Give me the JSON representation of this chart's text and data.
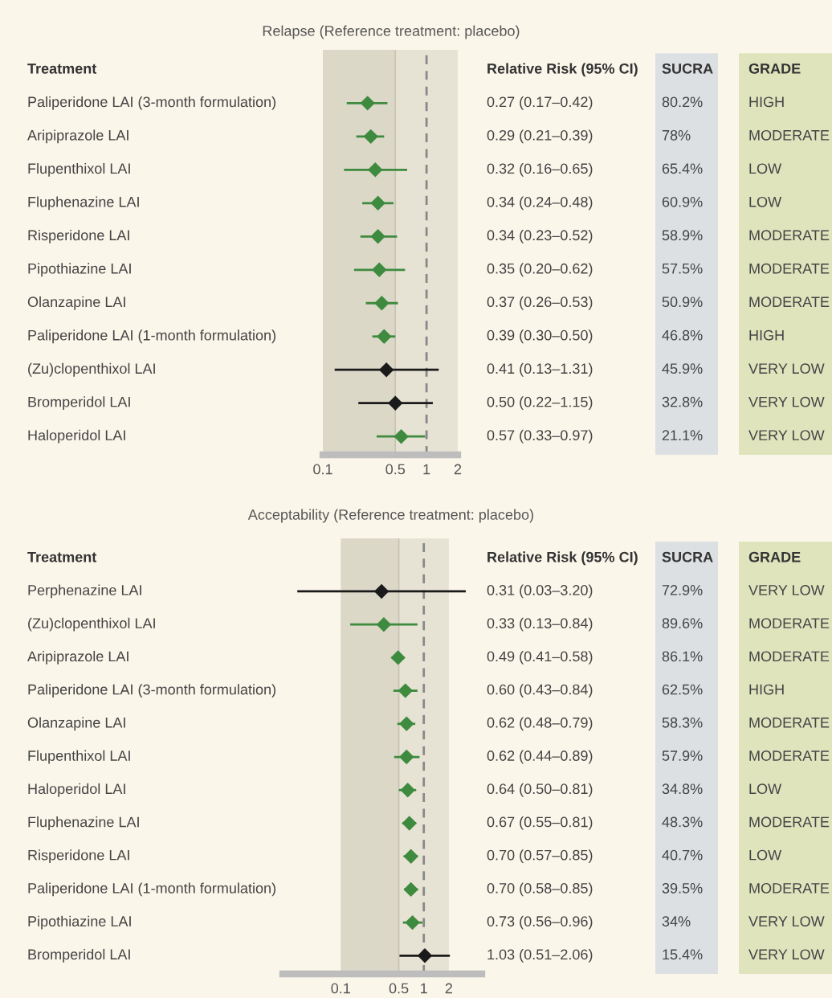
{
  "chart_data": [
    {
      "type": "scatter",
      "orientation": "horizontal",
      "title": "Relapse (Reference treatment: placebo)",
      "ylabel": "Treatment",
      "marker": "diamond",
      "legend": false,
      "grid": false,
      "log": "x",
      "categories": [
        "Paliperidone LAI (3-month formulation)",
        "Aripiprazole LAI",
        "Flupenthixol LAI",
        "Fluphenazine LAI",
        "Risperidone LAI",
        "Pipothiazine LAI",
        "Olanzapine LAI",
        "Paliperidone LAI (1-month formulation)",
        "(Zu)clopenthixol LAI",
        "Bromperidol LAI",
        "Haloperidol LAI"
      ],
      "values": [
        0.27,
        0.29,
        0.32,
        0.34,
        0.34,
        0.35,
        0.37,
        0.39,
        0.41,
        0.5,
        0.57
      ],
      "errors": [
        [
          0.17,
          0.42
        ],
        [
          0.21,
          0.39
        ],
        [
          0.16,
          0.65
        ],
        [
          0.24,
          0.48
        ],
        [
          0.23,
          0.52
        ],
        [
          0.2,
          0.62
        ],
        [
          0.26,
          0.53
        ],
        [
          0.3,
          0.5
        ],
        [
          0.13,
          1.31
        ],
        [
          0.22,
          1.15
        ],
        [
          0.33,
          0.97
        ]
      ],
      "colors": [
        "#3e8a3e",
        "#3e8a3e",
        "#3e8a3e",
        "#3e8a3e",
        "#3e8a3e",
        "#3e8a3e",
        "#3e8a3e",
        "#3e8a3e",
        "#1a1a1a",
        "#1a1a1a",
        "#3e8a3e"
      ],
      "value_labels": [
        "0.27 (0.17–0.42)",
        "0.29 (0.21–0.39)",
        "0.32 (0.16–0.65)",
        "0.34 (0.24–0.48)",
        "0.34 (0.23–0.52)",
        "0.35 (0.20–0.62)",
        "0.37 (0.26–0.53)",
        "0.39 (0.30–0.50)",
        "0.41 (0.13–1.31)",
        "0.50 (0.22–1.15)",
        "0.57 (0.33–0.97)"
      ],
      "xlim": [
        0.1,
        2
      ],
      "xticks": [
        0.1,
        0.5,
        1,
        2
      ],
      "bands": [
        {
          "axis": "x",
          "from": 0.1,
          "to": 0.5,
          "color": "#dcd8c8"
        },
        {
          "axis": "x",
          "from": 0.5,
          "to": 2,
          "color": "#e7e3d4"
        }
      ],
      "ref_lines": [
        {
          "axis": "x",
          "value": 1,
          "color": "#888888",
          "line_style": "dashed"
        },
        {
          "axis": "x",
          "value": 0.5,
          "color": "#c8c3b2",
          "line_style": "solid"
        }
      ],
      "annotations": [
        "Relative Risk (95% CI)",
        "SUCRA",
        "GRADE",
        "80.2%",
        "HIGH",
        "78%",
        "MODERATE",
        "65.4%",
        "LOW",
        "60.9%",
        "LOW",
        "58.9%",
        "MODERATE",
        "57.5%",
        "MODERATE",
        "50.9%",
        "MODERATE",
        "46.8%",
        "HIGH",
        "45.9%",
        "VERY LOW",
        "32.8%",
        "VERY LOW",
        "21.1%",
        "VERY LOW"
      ]
    },
    {
      "type": "scatter",
      "orientation": "horizontal",
      "title": "Acceptability (Reference treatment: placebo)",
      "ylabel": "Treatment",
      "marker": "diamond",
      "legend": false,
      "grid": false,
      "log": "x",
      "categories": [
        "Perphenazine LAI",
        "(Zu)clopenthixol LAI",
        "Aripiprazole LAI",
        "Paliperidone LAI (3-month formulation)",
        "Olanzapine LAI",
        "Flupenthixol LAI",
        "Haloperidol LAI",
        "Fluphenazine LAI",
        "Risperidone LAI",
        "Paliperidone LAI (1-month formulation)",
        "Pipothiazine LAI",
        "Bromperidol LAI"
      ],
      "values": [
        0.31,
        0.33,
        0.49,
        0.6,
        0.62,
        0.62,
        0.64,
        0.67,
        0.7,
        0.7,
        0.73,
        1.03
      ],
      "errors": [
        [
          0.03,
          3.2
        ],
        [
          0.13,
          0.84
        ],
        [
          0.41,
          0.58
        ],
        [
          0.43,
          0.84
        ],
        [
          0.48,
          0.79
        ],
        [
          0.44,
          0.89
        ],
        [
          0.5,
          0.81
        ],
        [
          0.55,
          0.81
        ],
        [
          0.57,
          0.85
        ],
        [
          0.58,
          0.85
        ],
        [
          0.56,
          0.96
        ],
        [
          0.51,
          2.06
        ]
      ],
      "colors": [
        "#1a1a1a",
        "#3e8a3e",
        "#3e8a3e",
        "#3e8a3e",
        "#3e8a3e",
        "#3e8a3e",
        "#3e8a3e",
        "#3e8a3e",
        "#3e8a3e",
        "#3e8a3e",
        "#3e8a3e",
        "#1a1a1a"
      ],
      "value_labels": [
        "0.31 (0.03–3.20)",
        "0.33 (0.13–0.84)",
        "0.49 (0.41–0.58)",
        "0.60 (0.43–0.84)",
        "0.62 (0.48–0.79)",
        "0.62 (0.44–0.89)",
        "0.64 (0.50–0.81)",
        "0.67 (0.55–0.81)",
        "0.70 (0.57–0.85)",
        "0.70 (0.58–0.85)",
        "0.73 (0.56–0.96)",
        "1.03 (0.51–2.06)"
      ],
      "xlim": [
        0.02,
        5
      ],
      "xticks": [
        0.1,
        0.5,
        1,
        2
      ],
      "bands": [
        {
          "axis": "x",
          "from": 0.1,
          "to": 0.5,
          "color": "#dcd8c8"
        },
        {
          "axis": "x",
          "from": 0.5,
          "to": 2,
          "color": "#e7e3d4"
        }
      ],
      "ref_lines": [
        {
          "axis": "x",
          "value": 1,
          "color": "#888888",
          "line_style": "dashed"
        },
        {
          "axis": "x",
          "value": 0.5,
          "color": "#c8c3b2",
          "line_style": "solid"
        }
      ],
      "annotations": [
        "Relative Risk (95% CI)",
        "SUCRA",
        "GRADE",
        "72.9%",
        "VERY LOW",
        "89.6%",
        "MODERATE",
        "86.1%",
        "MODERATE",
        "62.5%",
        "HIGH",
        "58.3%",
        "MODERATE",
        "57.9%",
        "MODERATE",
        "34.8%",
        "LOW",
        "48.3%",
        "MODERATE",
        "40.7%",
        "LOW",
        "39.5%",
        "MODERATE",
        "34%",
        "VERY LOW",
        "15.4%",
        "VERY LOW"
      ]
    }
  ]
}
